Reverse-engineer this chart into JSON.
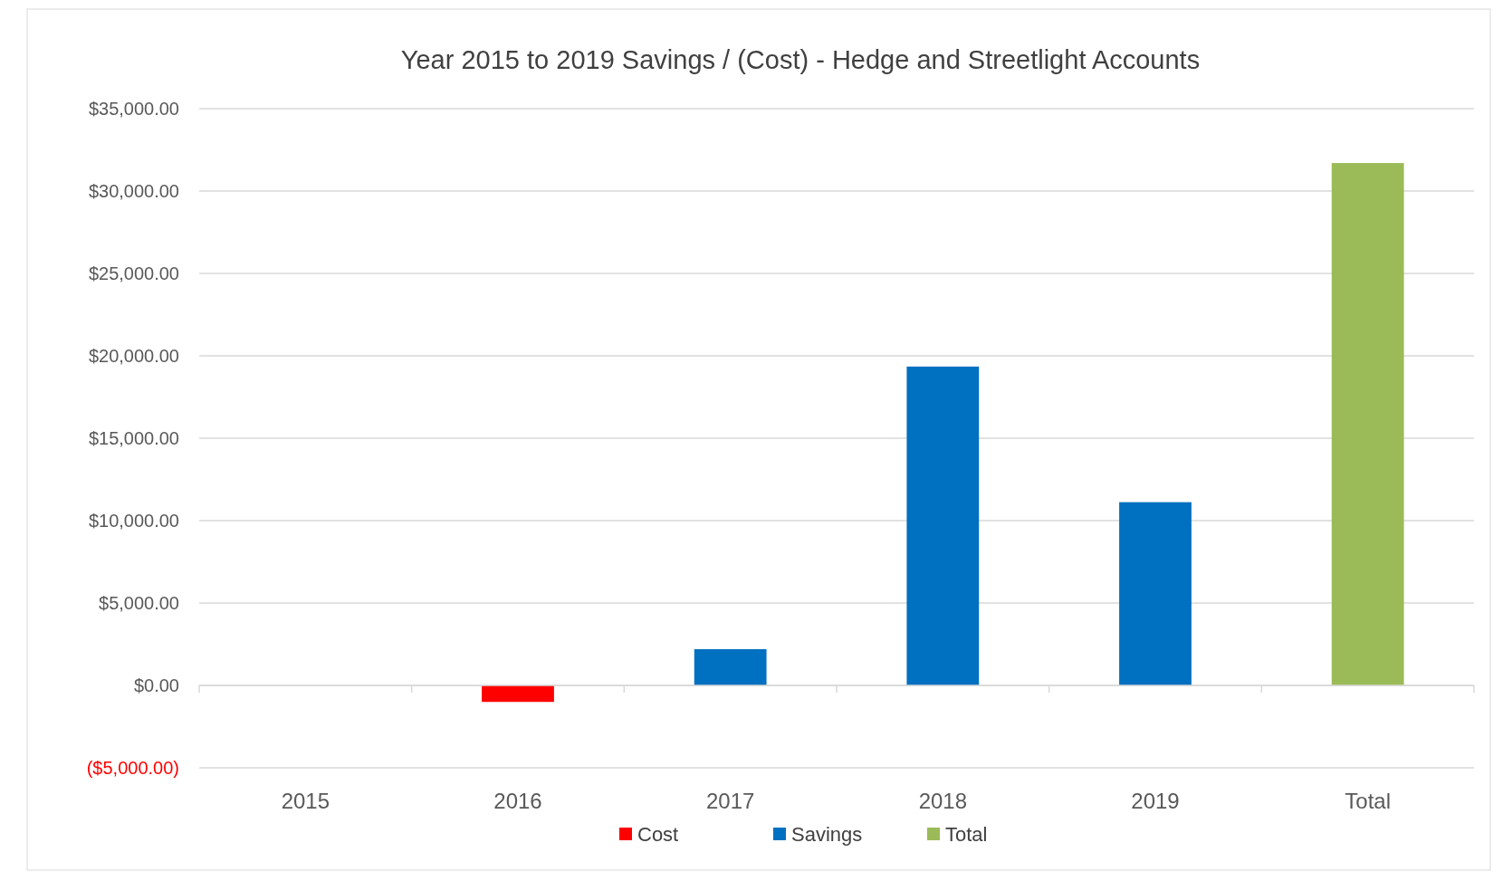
{
  "chart_data": {
    "type": "bar",
    "title": "Year 2015 to 2019 Savings / (Cost) - Hedge and Streetlight Accounts",
    "categories": [
      "2015",
      "2016",
      "2017",
      "2018",
      "2019",
      "Total"
    ],
    "series": [
      {
        "name": "Cost",
        "color": "#ff0000",
        "values": [
          null,
          -1000,
          null,
          null,
          null,
          null
        ]
      },
      {
        "name": "Savings",
        "color": "#0070c0",
        "values": [
          null,
          null,
          2200,
          19350,
          11120,
          null
        ]
      },
      {
        "name": "Total",
        "color": "#9bbb59",
        "values": [
          null,
          null,
          null,
          null,
          null,
          31700
        ]
      }
    ],
    "stacked": true,
    "ylim": [
      -5000,
      35000
    ],
    "yticks": [
      {
        "value": -5000,
        "label": "($5,000.00)"
      },
      {
        "value": 0,
        "label": "$0.00"
      },
      {
        "value": 5000,
        "label": "$5,000.00"
      },
      {
        "value": 10000,
        "label": "$10,000.00"
      },
      {
        "value": 15000,
        "label": "$15,000.00"
      },
      {
        "value": 20000,
        "label": "$20,000.00"
      },
      {
        "value": 25000,
        "label": "$25,000.00"
      },
      {
        "value": 30000,
        "label": "$30,000.00"
      },
      {
        "value": 35000,
        "label": "$35,000.00"
      }
    ],
    "grid": "y",
    "legend": "bottom"
  }
}
